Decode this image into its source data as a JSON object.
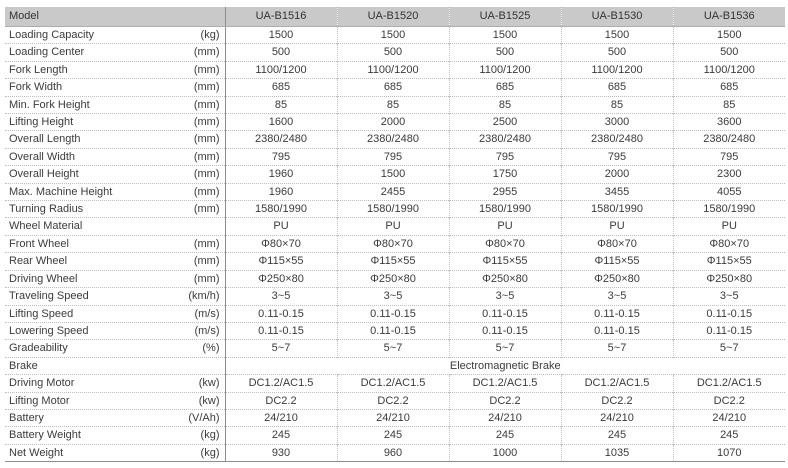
{
  "table": {
    "header": {
      "label": "Model",
      "models": [
        "UA-B1516",
        "UA-B1520",
        "UA-B1525",
        "UA-B1530",
        "UA-B1536"
      ]
    },
    "rows": [
      {
        "label": "Loading Capacity",
        "unit": "(kg)",
        "values": [
          "1500",
          "1500",
          "1500",
          "1500",
          "1500"
        ]
      },
      {
        "label": "Loading Center",
        "unit": "(mm)",
        "values": [
          "500",
          "500",
          "500",
          "500",
          "500"
        ]
      },
      {
        "label": "Fork Length",
        "unit": "(mm)",
        "values": [
          "1100/1200",
          "1100/1200",
          "1100/1200",
          "1100/1200",
          "1100/1200"
        ]
      },
      {
        "label": "Fork Width",
        "unit": "(mm)",
        "values": [
          "685",
          "685",
          "685",
          "685",
          "685"
        ]
      },
      {
        "label": "Min. Fork Height",
        "unit": "(mm)",
        "values": [
          "85",
          "85",
          "85",
          "85",
          "85"
        ]
      },
      {
        "label": "Lifting Height",
        "unit": "(mm)",
        "values": [
          "1600",
          "2000",
          "2500",
          "3000",
          "3600"
        ]
      },
      {
        "label": "Overall Length",
        "unit": "(mm)",
        "values": [
          "2380/2480",
          "2380/2480",
          "2380/2480",
          "2380/2480",
          "2380/2480"
        ]
      },
      {
        "label": "Overall Width",
        "unit": "(mm)",
        "values": [
          "795",
          "795",
          "795",
          "795",
          "795"
        ]
      },
      {
        "label": "Overall Height",
        "unit": "(mm)",
        "values": [
          "1960",
          "1500",
          "1750",
          "2000",
          "2300"
        ]
      },
      {
        "label": "Max. Machine Height",
        "unit": "(mm)",
        "values": [
          "1960",
          "2455",
          "2955",
          "3455",
          "4055"
        ]
      },
      {
        "label": "Turning Radius",
        "unit": "(mm)",
        "values": [
          "1580/1990",
          "1580/1990",
          "1580/1990",
          "1580/1990",
          "1580/1990"
        ]
      },
      {
        "label": "Wheel Material",
        "unit": "",
        "values": [
          "PU",
          "PU",
          "PU",
          "PU",
          "PU"
        ]
      },
      {
        "label": "Front Wheel",
        "unit": "(mm)",
        "values": [
          "Φ80×70",
          "Φ80×70",
          "Φ80×70",
          "Φ80×70",
          "Φ80×70"
        ]
      },
      {
        "label": "Rear Wheel",
        "unit": "(mm)",
        "values": [
          "Φ115×55",
          "Φ115×55",
          "Φ115×55",
          "Φ115×55",
          "Φ115×55"
        ]
      },
      {
        "label": "Driving Wheel",
        "unit": "(mm)",
        "values": [
          "Φ250×80",
          "Φ250×80",
          "Φ250×80",
          "Φ250×80",
          "Φ250×80"
        ]
      },
      {
        "label": "Traveling Speed",
        "unit": "(km/h)",
        "values": [
          "3~5",
          "3~5",
          "3~5",
          "3~5",
          "3~5"
        ]
      },
      {
        "label": "Lifting Speed",
        "unit": "(m/s)",
        "values": [
          "0.11-0.15",
          "0.11-0.15",
          "0.11-0.15",
          "0.11-0.15",
          "0.11-0.15"
        ]
      },
      {
        "label": "Lowering Speed",
        "unit": "(m/s)",
        "values": [
          "0.11-0.15",
          "0.11-0.15",
          "0.11-0.15",
          "0.11-0.15",
          "0.11-0.15"
        ]
      },
      {
        "label": "Gradeability",
        "unit": "(%)",
        "values": [
          "5~7",
          "5~7",
          "5~7",
          "5~7",
          "5~7"
        ]
      },
      {
        "label": "Brake",
        "unit": "",
        "span": "Electromagnetic Brake"
      },
      {
        "label": "Driving Motor",
        "unit": "(kw)",
        "values": [
          "DC1.2/AC1.5",
          "DC1.2/AC1.5",
          "DC1.2/AC1.5",
          "DC1.2/AC1.5",
          "DC1.2/AC1.5"
        ]
      },
      {
        "label": "Lifting Motor",
        "unit": "(kw)",
        "values": [
          "DC2.2",
          "DC2.2",
          "DC2.2",
          "DC2.2",
          "DC2.2"
        ]
      },
      {
        "label": "Battery",
        "unit": "(V/Ah)",
        "values": [
          "24/210",
          "24/210",
          "24/210",
          "24/210",
          "24/210"
        ]
      },
      {
        "label": "Battery Weight",
        "unit": "(kg)",
        "values": [
          "245",
          "245",
          "245",
          "245",
          "245"
        ]
      },
      {
        "label": "Net Weight",
        "unit": "(kg)",
        "values": [
          "930",
          "960",
          "1000",
          "1035",
          "1070"
        ]
      }
    ],
    "colors": {
      "header_bg": "#c9c9c9",
      "text": "#3b3b3b",
      "dotted_line": "#bdbdbd",
      "solid_divider": "#8c8c8c",
      "bottom_border": "#8e8e8e"
    }
  }
}
